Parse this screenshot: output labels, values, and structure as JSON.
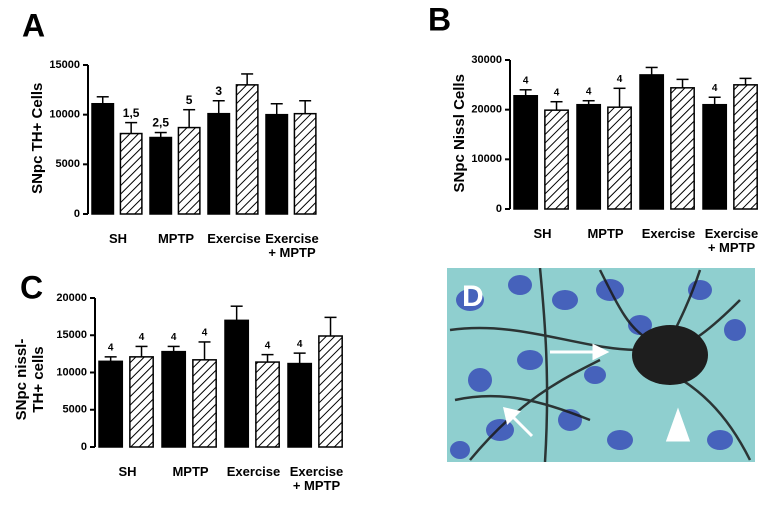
{
  "chart_data": [
    {
      "type": "bar",
      "panel": "A",
      "ylabel": "SNpc TH+ Cells",
      "categories": [
        "SH",
        "MPTP",
        "Exercise",
        "Exercise + MPTP"
      ],
      "ylim": [
        0,
        15000
      ],
      "yticks": [
        0,
        5000,
        10000,
        15000
      ],
      "series": [
        {
          "color": "#000000",
          "values": [
            11100,
            7700,
            10100,
            10000
          ],
          "errors": [
            700,
            500,
            1300,
            1100
          ],
          "annotations": [
            null,
            "2,5",
            "3",
            null
          ]
        },
        {
          "color": "#000000",
          "pattern": "hatch",
          "values": [
            8100,
            8700,
            13000,
            10100
          ],
          "errors": [
            1100,
            1800,
            1100,
            1300
          ],
          "annotations": [
            "1,5",
            "5",
            null,
            null
          ]
        }
      ]
    },
    {
      "type": "bar",
      "panel": "B",
      "ylabel": "SNpc Nissl Cells",
      "categories": [
        "SH",
        "MPTP",
        "Exercise",
        "Exercise + MPTP"
      ],
      "ylim": [
        0,
        30000
      ],
      "yticks": [
        0,
        10000,
        20000,
        30000
      ],
      "series": [
        {
          "color": "#000000",
          "values": [
            22800,
            21000,
            27000,
            21000
          ],
          "errors": [
            1200,
            800,
            1500,
            1500
          ],
          "annotations": [
            "4",
            "4",
            null,
            "4"
          ]
        },
        {
          "color": "#000000",
          "pattern": "hatch",
          "values": [
            19900,
            20500,
            24400,
            25000
          ],
          "errors": [
            1700,
            3800,
            1700,
            1300
          ],
          "annotations": [
            "4",
            "4",
            null,
            null
          ]
        }
      ]
    },
    {
      "type": "bar",
      "panel": "C",
      "ylabel": "SNpc nissl- TH+ cells",
      "categories": [
        "SH",
        "MPTP",
        "Exercise",
        "Exercise + MPTP"
      ],
      "ylim": [
        0,
        20000
      ],
      "yticks": [
        0,
        5000,
        10000,
        15000,
        20000
      ],
      "series": [
        {
          "color": "#000000",
          "values": [
            11500,
            12800,
            17000,
            11200
          ],
          "errors": [
            600,
            700,
            1900,
            1400
          ],
          "annotations": [
            "4",
            "4",
            null,
            "4"
          ]
        },
        {
          "color": "#000000",
          "pattern": "hatch",
          "values": [
            12100,
            11700,
            11400,
            14900
          ],
          "errors": [
            1400,
            2400,
            1000,
            2500
          ],
          "annotations": [
            "4",
            "4",
            "4",
            null
          ]
        }
      ]
    }
  ],
  "image_panel": {
    "label": "D"
  }
}
